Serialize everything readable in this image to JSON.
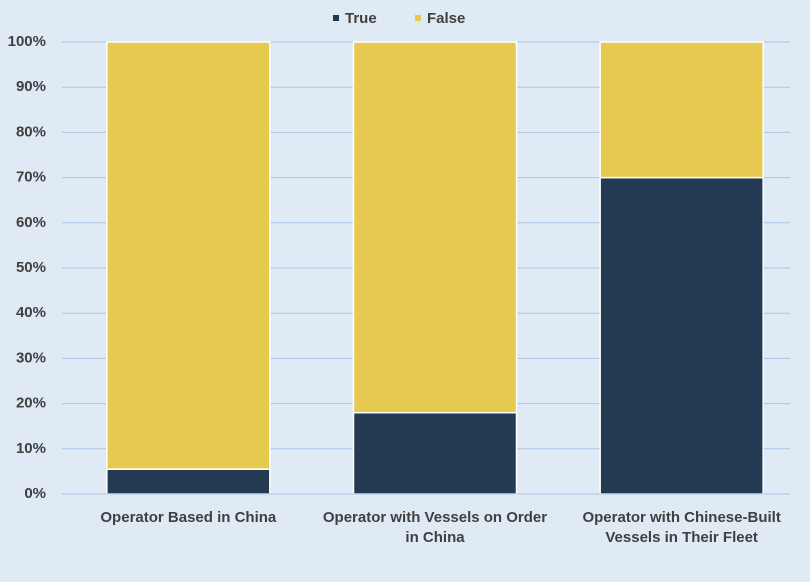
{
  "chart_data": {
    "type": "stacked-bar",
    "categories": [
      "Operator Based in China",
      "Operator with Vessels on Order in China",
      "Operator with Chinese-Built Vessels in Their Fleet"
    ],
    "series": [
      {
        "name": "True",
        "color": "#243a52",
        "values": [
          5.5,
          18,
          70
        ]
      },
      {
        "name": "False",
        "color": "#e6c94f",
        "values": [
          94.5,
          82,
          30
        ]
      }
    ],
    "ylim": [
      0,
      100
    ],
    "yticks": [
      {
        "value": 0,
        "label": "0%"
      },
      {
        "value": 10,
        "label": "10%"
      },
      {
        "value": 20,
        "label": "20%"
      },
      {
        "value": 30,
        "label": "30%"
      },
      {
        "value": 40,
        "label": "40%"
      },
      {
        "value": 50,
        "label": "50%"
      },
      {
        "value": 60,
        "label": "60%"
      },
      {
        "value": 70,
        "label": "70%"
      },
      {
        "value": 80,
        "label": "80%"
      },
      {
        "value": 90,
        "label": "90%"
      },
      {
        "value": 100,
        "label": "100%"
      }
    ],
    "grid": true,
    "legend": "top"
  }
}
